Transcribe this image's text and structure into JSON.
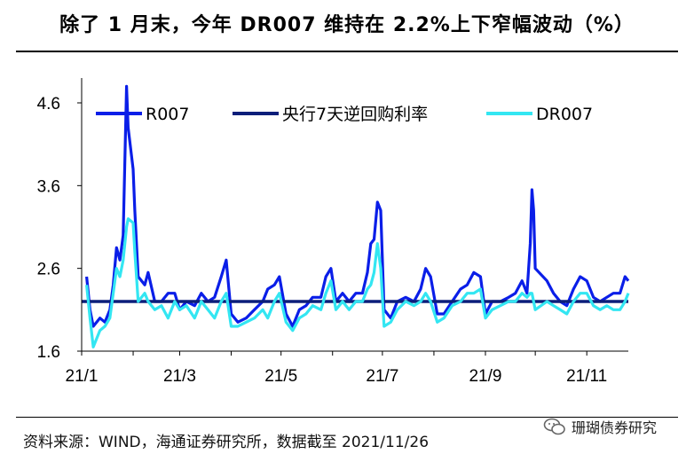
{
  "header": {
    "title": "除了 1 月末，今年 DR007 维持在 2.2%上下窄幅波动（%）"
  },
  "footer": {
    "source": "资料来源：WIND，海通证券研究所，数据截至 2021/11/26",
    "watermark": "珊瑚债券研究"
  },
  "chart_data": {
    "type": "line",
    "title": "除了 1 月末，今年 DR007 维持在 2.2%上下窄幅波动（%）",
    "xlabel": "",
    "ylabel": "",
    "ylim": [
      1.6,
      4.9
    ],
    "yticks": [
      "1.6",
      "2.6",
      "3.6",
      "4.6"
    ],
    "xtick_labels": [
      "21/1",
      "21/3",
      "21/5",
      "21/7",
      "21/9",
      "21/11"
    ],
    "legend_position": "top",
    "grid": false,
    "x_range": [
      "2021-01-01",
      "2021-11-26"
    ],
    "series": [
      {
        "name": "R007",
        "color": "#0a1ee8",
        "points": [
          [
            "2021-01-04",
            2.5
          ],
          [
            "2021-01-06",
            2.1
          ],
          [
            "2021-01-08",
            1.9
          ],
          [
            "2021-01-12",
            2.0
          ],
          [
            "2021-01-15",
            1.95
          ],
          [
            "2021-01-18",
            2.1
          ],
          [
            "2021-01-20",
            2.4
          ],
          [
            "2021-01-22",
            2.85
          ],
          [
            "2021-01-24",
            2.7
          ],
          [
            "2021-01-26",
            3.0
          ],
          [
            "2021-01-28",
            4.8
          ],
          [
            "2021-01-29",
            4.3
          ],
          [
            "2021-02-01",
            3.8
          ],
          [
            "2021-02-02",
            3.3
          ],
          [
            "2021-02-04",
            2.5
          ],
          [
            "2021-02-08",
            2.4
          ],
          [
            "2021-02-10",
            2.55
          ],
          [
            "2021-02-14",
            2.2
          ],
          [
            "2021-02-18",
            2.2
          ],
          [
            "2021-02-22",
            2.3
          ],
          [
            "2021-02-26",
            2.3
          ],
          [
            "2021-03-01",
            2.1
          ],
          [
            "2021-03-05",
            2.2
          ],
          [
            "2021-03-10",
            2.15
          ],
          [
            "2021-03-14",
            2.3
          ],
          [
            "2021-03-18",
            2.2
          ],
          [
            "2021-03-22",
            2.25
          ],
          [
            "2021-03-26",
            2.5
          ],
          [
            "2021-03-29",
            2.7
          ],
          [
            "2021-04-01",
            2.05
          ],
          [
            "2021-04-05",
            1.95
          ],
          [
            "2021-04-10",
            2.0
          ],
          [
            "2021-04-15",
            2.1
          ],
          [
            "2021-04-20",
            2.2
          ],
          [
            "2021-04-23",
            2.35
          ],
          [
            "2021-04-27",
            2.4
          ],
          [
            "2021-04-30",
            2.5
          ],
          [
            "2021-05-04",
            2.05
          ],
          [
            "2021-05-08",
            1.9
          ],
          [
            "2021-05-12",
            2.1
          ],
          [
            "2021-05-16",
            2.15
          ],
          [
            "2021-05-20",
            2.25
          ],
          [
            "2021-05-25",
            2.25
          ],
          [
            "2021-05-28",
            2.5
          ],
          [
            "2021-05-31",
            2.6
          ],
          [
            "2021-06-03",
            2.2
          ],
          [
            "2021-06-07",
            2.3
          ],
          [
            "2021-06-11",
            2.2
          ],
          [
            "2021-06-15",
            2.3
          ],
          [
            "2021-06-19",
            2.3
          ],
          [
            "2021-06-22",
            2.55
          ],
          [
            "2021-06-24",
            2.9
          ],
          [
            "2021-06-26",
            2.95
          ],
          [
            "2021-06-28",
            3.4
          ],
          [
            "2021-06-30",
            3.3
          ],
          [
            "2021-07-02",
            2.1
          ],
          [
            "2021-07-06",
            2.0
          ],
          [
            "2021-07-10",
            2.2
          ],
          [
            "2021-07-15",
            2.25
          ],
          [
            "2021-07-20",
            2.2
          ],
          [
            "2021-07-24",
            2.35
          ],
          [
            "2021-07-27",
            2.6
          ],
          [
            "2021-07-30",
            2.5
          ],
          [
            "2021-08-03",
            2.05
          ],
          [
            "2021-08-07",
            2.05
          ],
          [
            "2021-08-12",
            2.2
          ],
          [
            "2021-08-17",
            2.35
          ],
          [
            "2021-08-21",
            2.4
          ],
          [
            "2021-08-25",
            2.55
          ],
          [
            "2021-08-29",
            2.5
          ],
          [
            "2021-09-01",
            2.05
          ],
          [
            "2021-09-05",
            2.2
          ],
          [
            "2021-09-10",
            2.2
          ],
          [
            "2021-09-15",
            2.25
          ],
          [
            "2021-09-19",
            2.3
          ],
          [
            "2021-09-23",
            2.45
          ],
          [
            "2021-09-26",
            2.3
          ],
          [
            "2021-09-28",
            2.9
          ],
          [
            "2021-09-29",
            3.55
          ],
          [
            "2021-09-30",
            3.3
          ],
          [
            "2021-10-01",
            2.6
          ],
          [
            "2021-10-08",
            2.45
          ],
          [
            "2021-10-12",
            2.3
          ],
          [
            "2021-10-16",
            2.2
          ],
          [
            "2021-10-20",
            2.15
          ],
          [
            "2021-10-24",
            2.35
          ],
          [
            "2021-10-28",
            2.5
          ],
          [
            "2021-11-01",
            2.45
          ],
          [
            "2021-11-05",
            2.25
          ],
          [
            "2021-11-09",
            2.2
          ],
          [
            "2021-11-13",
            2.25
          ],
          [
            "2021-11-17",
            2.3
          ],
          [
            "2021-11-21",
            2.3
          ],
          [
            "2021-11-24",
            2.5
          ],
          [
            "2021-11-26",
            2.45
          ]
        ]
      },
      {
        "name": "央行7天逆回购利率",
        "color": "#0c1e7a",
        "points": [
          [
            "2021-01-01",
            2.2
          ],
          [
            "2021-11-26",
            2.2
          ]
        ]
      },
      {
        "name": "DR007",
        "color": "#33e6f2",
        "points": [
          [
            "2021-01-04",
            2.4
          ],
          [
            "2021-01-06",
            2.0
          ],
          [
            "2021-01-08",
            1.65
          ],
          [
            "2021-01-12",
            1.85
          ],
          [
            "2021-01-15",
            1.9
          ],
          [
            "2021-01-18",
            2.0
          ],
          [
            "2021-01-20",
            2.3
          ],
          [
            "2021-01-22",
            2.6
          ],
          [
            "2021-01-24",
            2.5
          ],
          [
            "2021-01-26",
            2.7
          ],
          [
            "2021-01-28",
            3.1
          ],
          [
            "2021-01-29",
            3.2
          ],
          [
            "2021-02-01",
            3.15
          ],
          [
            "2021-02-02",
            2.8
          ],
          [
            "2021-02-04",
            2.2
          ],
          [
            "2021-02-08",
            2.3
          ],
          [
            "2021-02-10",
            2.2
          ],
          [
            "2021-02-14",
            2.1
          ],
          [
            "2021-02-18",
            2.15
          ],
          [
            "2021-02-22",
            2.0
          ],
          [
            "2021-02-26",
            2.2
          ],
          [
            "2021-03-01",
            2.1
          ],
          [
            "2021-03-05",
            2.15
          ],
          [
            "2021-03-10",
            2.0
          ],
          [
            "2021-03-14",
            2.2
          ],
          [
            "2021-03-18",
            2.1
          ],
          [
            "2021-03-22",
            2.0
          ],
          [
            "2021-03-26",
            2.2
          ],
          [
            "2021-03-29",
            2.3
          ],
          [
            "2021-04-01",
            1.9
          ],
          [
            "2021-04-05",
            1.9
          ],
          [
            "2021-04-10",
            1.95
          ],
          [
            "2021-04-15",
            2.0
          ],
          [
            "2021-04-20",
            2.1
          ],
          [
            "2021-04-23",
            2.0
          ],
          [
            "2021-04-27",
            2.2
          ],
          [
            "2021-04-30",
            2.3
          ],
          [
            "2021-05-04",
            1.95
          ],
          [
            "2021-05-08",
            1.85
          ],
          [
            "2021-05-12",
            2.0
          ],
          [
            "2021-05-16",
            2.05
          ],
          [
            "2021-05-20",
            2.15
          ],
          [
            "2021-05-25",
            2.1
          ],
          [
            "2021-05-28",
            2.3
          ],
          [
            "2021-05-31",
            2.45
          ],
          [
            "2021-06-03",
            2.1
          ],
          [
            "2021-06-07",
            2.2
          ],
          [
            "2021-06-11",
            2.1
          ],
          [
            "2021-06-15",
            2.2
          ],
          [
            "2021-06-19",
            2.2
          ],
          [
            "2021-06-22",
            2.35
          ],
          [
            "2021-06-24",
            2.4
          ],
          [
            "2021-06-26",
            2.55
          ],
          [
            "2021-06-28",
            2.9
          ],
          [
            "2021-06-30",
            2.6
          ],
          [
            "2021-07-02",
            1.9
          ],
          [
            "2021-07-06",
            1.95
          ],
          [
            "2021-07-10",
            2.1
          ],
          [
            "2021-07-15",
            2.2
          ],
          [
            "2021-07-20",
            2.15
          ],
          [
            "2021-07-24",
            2.2
          ],
          [
            "2021-07-27",
            2.3
          ],
          [
            "2021-07-30",
            2.2
          ],
          [
            "2021-08-03",
            1.95
          ],
          [
            "2021-08-07",
            2.0
          ],
          [
            "2021-08-12",
            2.15
          ],
          [
            "2021-08-17",
            2.2
          ],
          [
            "2021-08-21",
            2.3
          ],
          [
            "2021-08-25",
            2.3
          ],
          [
            "2021-08-29",
            2.35
          ],
          [
            "2021-09-01",
            2.0
          ],
          [
            "2021-09-05",
            2.1
          ],
          [
            "2021-09-10",
            2.15
          ],
          [
            "2021-09-15",
            2.2
          ],
          [
            "2021-09-19",
            2.2
          ],
          [
            "2021-09-23",
            2.3
          ],
          [
            "2021-09-26",
            2.25
          ],
          [
            "2021-09-28",
            2.3
          ],
          [
            "2021-09-29",
            2.3
          ],
          [
            "2021-09-30",
            2.2
          ],
          [
            "2021-10-01",
            2.1
          ],
          [
            "2021-10-08",
            2.2
          ],
          [
            "2021-10-12",
            2.15
          ],
          [
            "2021-10-16",
            2.1
          ],
          [
            "2021-10-20",
            2.05
          ],
          [
            "2021-10-24",
            2.2
          ],
          [
            "2021-10-28",
            2.3
          ],
          [
            "2021-11-01",
            2.3
          ],
          [
            "2021-11-05",
            2.15
          ],
          [
            "2021-11-09",
            2.1
          ],
          [
            "2021-11-13",
            2.15
          ],
          [
            "2021-11-17",
            2.1
          ],
          [
            "2021-11-21",
            2.1
          ],
          [
            "2021-11-24",
            2.2
          ],
          [
            "2021-11-26",
            2.3
          ]
        ]
      }
    ]
  }
}
